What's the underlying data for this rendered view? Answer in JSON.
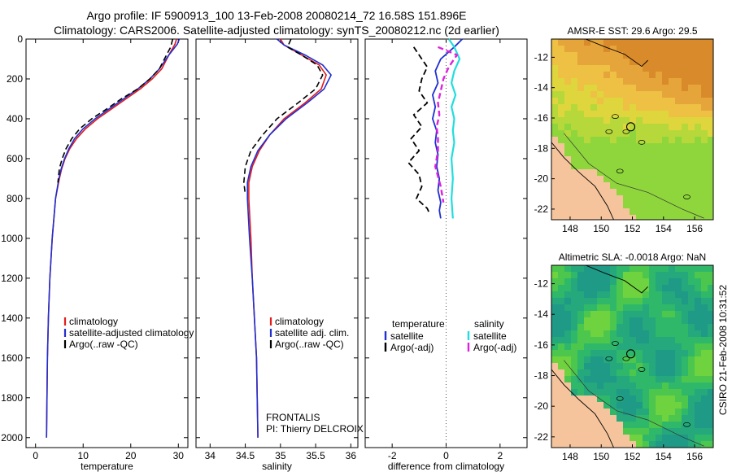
{
  "header": {
    "line1": "Argo profile: IF 5900913_100 13-Feb-2008 20080214_72 16.58S 151.896E",
    "line2": "Climatology: CARS2006. Satellite-adjusted climatology: synTS_20080212.nc (2d earlier)"
  },
  "side_label": "CSIRO 21-Feb-2008 10:31:52",
  "colors": {
    "climatology": "#e41a1c",
    "satellite": "#1f2fd0",
    "argo": "#000000",
    "satellite_salinity": "#22dddd",
    "argo_salinity": "#dd22dd",
    "land": "#f6c49c"
  },
  "chart_data": [
    {
      "type": "line",
      "xlabel": "temperature",
      "ylim": [
        2050,
        0
      ],
      "xlim": [
        -2,
        32
      ],
      "xticks": [
        "0",
        "10",
        "20",
        "30"
      ],
      "yticks": [
        "0",
        "200",
        "400",
        "600",
        "800",
        "1000",
        "1200",
        "1400",
        "1600",
        "1800",
        "2000"
      ],
      "legend": [
        "climatology",
        "satellite-adjusted climatology",
        "Argo(..raw -QC)"
      ],
      "series": [
        {
          "name": "climatology",
          "x": [
            29.6,
            29.3,
            28.0,
            26.5,
            24.5,
            22.0,
            19.0,
            16.0,
            13.0,
            10.5,
            8.6,
            7.2,
            6.2,
            5.5,
            5.0,
            4.2,
            3.5,
            3.0,
            2.7,
            2.5,
            2.3
          ],
          "y": [
            0,
            25,
            80,
            150,
            200,
            250,
            300,
            350,
            400,
            450,
            500,
            550,
            600,
            650,
            700,
            800,
            1000,
            1200,
            1400,
            1600,
            2000
          ]
        },
        {
          "name": "satellite-adjusted climatology",
          "x": [
            30.2,
            29.8,
            28.0,
            26.0,
            24.0,
            21.5,
            18.5,
            15.5,
            12.5,
            10.0,
            8.2,
            7.0,
            6.1,
            5.4,
            4.9,
            4.2,
            3.5,
            3.0,
            2.7,
            2.5,
            2.3
          ],
          "y": [
            0,
            25,
            80,
            150,
            200,
            250,
            300,
            350,
            400,
            450,
            500,
            550,
            600,
            650,
            700,
            800,
            1000,
            1200,
            1400,
            1600,
            2000
          ]
        },
        {
          "name": "Argo(..raw -QC)",
          "x": [
            28.8,
            28.4,
            27.5,
            26.0,
            24.0,
            21.5,
            18.0,
            15.0,
            11.8,
            9.3,
            7.6,
            6.4,
            5.6,
            5.0,
            4.7
          ],
          "y": [
            0,
            40,
            80,
            150,
            200,
            250,
            300,
            350,
            400,
            450,
            500,
            550,
            600,
            650,
            720
          ]
        }
      ]
    },
    {
      "type": "line",
      "xlabel": "salinity",
      "ylim": [
        2050,
        0
      ],
      "xlim": [
        33.8,
        36.1
      ],
      "xticks": [
        "34",
        "34.5",
        "35",
        "35.5",
        "36"
      ],
      "legend": [
        "climatology",
        "satellite adj. clim.",
        "Argo(..raw -QC)"
      ],
      "annotation": [
        "FRONTALIS",
        "PI: Thierry DELCROIX"
      ],
      "series": [
        {
          "name": "climatology",
          "x": [
            35.0,
            35.05,
            35.3,
            35.55,
            35.65,
            35.58,
            35.35,
            35.05,
            34.85,
            34.7,
            34.6,
            34.55,
            34.55,
            34.58,
            34.6,
            34.63,
            34.66,
            34.68
          ],
          "y": [
            0,
            30,
            80,
            130,
            180,
            250,
            320,
            400,
            480,
            560,
            640,
            720,
            800,
            1000,
            1200,
            1400,
            1600,
            2000
          ]
        },
        {
          "name": "satellite adj. clim.",
          "x": [
            34.95,
            35.05,
            35.35,
            35.6,
            35.72,
            35.62,
            35.38,
            35.08,
            34.85,
            34.68,
            34.58,
            34.53,
            34.53,
            34.56,
            34.6,
            34.63,
            34.66,
            34.68
          ],
          "y": [
            0,
            30,
            80,
            130,
            180,
            250,
            320,
            400,
            480,
            560,
            640,
            720,
            800,
            1000,
            1200,
            1400,
            1600,
            2000
          ]
        },
        {
          "name": "Argo(..raw -QC)",
          "x": [
            35.15,
            35.1,
            35.3,
            35.52,
            35.6,
            35.5,
            35.25,
            34.95,
            34.75,
            34.58,
            34.5,
            34.48,
            34.5
          ],
          "y": [
            0,
            40,
            80,
            130,
            180,
            250,
            320,
            400,
            480,
            560,
            640,
            720,
            780
          ]
        }
      ]
    },
    {
      "type": "line",
      "xlabel": "difference from climatology",
      "ylim": [
        2050,
        0
      ],
      "xlim": [
        -3,
        3
      ],
      "xticks": [
        "-2",
        "0",
        "2"
      ],
      "legend_titles": [
        "temperature",
        "salinity"
      ],
      "legend": [
        "satellite",
        "Argo(-adj)",
        "satellite",
        "Argo(-adj)"
      ],
      "series": [
        {
          "name": "satellite",
          "x": [
            0.6,
            0.3,
            -0.2,
            -0.4,
            -0.3,
            -0.5,
            -0.4,
            -0.5,
            -0.35,
            -0.4,
            -0.3,
            -0.35,
            -0.25,
            -0.3,
            -0.2,
            -0.25,
            -0.2
          ],
          "y": [
            0,
            40,
            100,
            160,
            220,
            280,
            340,
            400,
            460,
            520,
            580,
            640,
            700,
            760,
            820,
            860,
            900
          ]
        },
        {
          "name": "Argo(-adj)",
          "x": [
            -1.2,
            -1.0,
            -0.7,
            -0.9,
            -1.0,
            -0.7,
            -1.2,
            -0.9,
            -1.3,
            -1.0,
            -1.4,
            -1.0,
            -0.9,
            -1.1,
            -0.7,
            -0.6
          ],
          "y": [
            40,
            80,
            140,
            200,
            260,
            320,
            380,
            440,
            500,
            560,
            620,
            680,
            740,
            800,
            850,
            880
          ]
        },
        {
          "name": "satellite",
          "x": [
            0.1,
            0.3,
            0.5,
            0.3,
            0.2,
            0.35,
            0.2,
            0.3,
            0.25,
            0.3,
            0.2,
            0.25,
            0.2,
            0.25
          ],
          "y": [
            0,
            40,
            100,
            160,
            220,
            280,
            340,
            400,
            460,
            520,
            600,
            700,
            800,
            900
          ]
        },
        {
          "name": "Argo(-adj)",
          "x": [
            -0.3,
            0.4,
            0.1,
            -0.1,
            -0.2,
            -0.3,
            -0.25,
            -0.35,
            -0.3,
            -0.3,
            -0.4,
            -0.2,
            -0.1
          ],
          "y": [
            40,
            80,
            140,
            200,
            260,
            320,
            380,
            440,
            500,
            560,
            640,
            740,
            820
          ]
        }
      ]
    },
    {
      "type": "heatmap",
      "title": "AMSR-E SST: 29.6  Argo: 29.5",
      "xticks": [
        "148",
        "150",
        "152",
        "154",
        "156"
      ],
      "yticks": [
        "-12",
        "-14",
        "-16",
        "-18",
        "-20",
        "-22"
      ],
      "xlim": [
        146.8,
        157.2
      ],
      "ylim": [
        -22.7,
        -10.8
      ]
    },
    {
      "type": "heatmap",
      "title": "Altimetric SLA: -0.0018  Argo: NaN",
      "xticks": [
        "148",
        "150",
        "152",
        "154",
        "156"
      ],
      "yticks": [
        "-12",
        "-14",
        "-16",
        "-18",
        "-20",
        "-22"
      ],
      "xlim": [
        146.8,
        157.2
      ],
      "ylim": [
        -22.7,
        -10.8
      ]
    }
  ]
}
